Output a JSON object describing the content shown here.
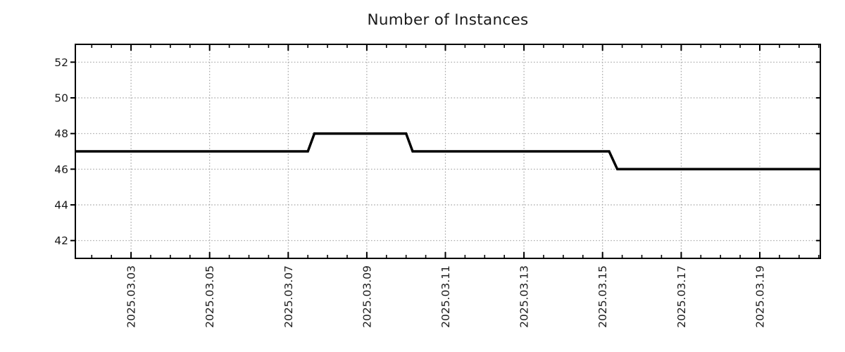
{
  "page": {
    "background": "#ffffff"
  },
  "chart_data": {
    "type": "line",
    "title": "Number of Instances",
    "xlabel": "",
    "ylabel": "",
    "grid": true,
    "legend": false,
    "x_axis": {
      "range_start": "2025-03-01 14:00",
      "range_end": "2025-03-20 13:00",
      "major_tick_labels": [
        "2025.03.03",
        "2025.03.05",
        "2025.03.07",
        "2025.03.09",
        "2025.03.11",
        "2025.03.13",
        "2025.03.15",
        "2025.03.17",
        "2025.03.19"
      ],
      "minor_tick_interval_hours": 12,
      "tick_label_rotation_deg": 90
    },
    "y_axis": {
      "tick_values": [
        42,
        44,
        46,
        48,
        50,
        52
      ],
      "ylim": [
        41,
        53
      ]
    },
    "series": [
      {
        "name": "Number of Instances",
        "color": "#000000",
        "line_width": 3.5,
        "points": [
          {
            "x": "2025-03-01 14:00",
            "y": 47
          },
          {
            "x": "2025-03-07 12:00",
            "y": 47
          },
          {
            "x": "2025-03-07 16:00",
            "y": 48
          },
          {
            "x": "2025-03-10 00:00",
            "y": 48
          },
          {
            "x": "2025-03-10 04:00",
            "y": 47
          },
          {
            "x": "2025-03-15 04:00",
            "y": 47
          },
          {
            "x": "2025-03-15 09:00",
            "y": 46
          },
          {
            "x": "2025-03-20 13:00",
            "y": 46
          }
        ]
      }
    ],
    "colors": {
      "line": "#000000",
      "grid": "#a6a6a6",
      "axis": "#000000",
      "text": "#1a1a1a",
      "background": "#ffffff"
    }
  }
}
